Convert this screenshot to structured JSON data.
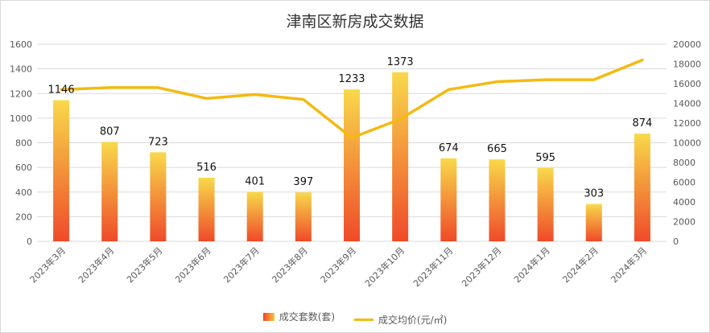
{
  "chart_data": {
    "type": "bar",
    "title": "津南区新房成交数据",
    "categories": [
      "2023年3月",
      "2023年4月",
      "2023年5月",
      "2023年6月",
      "2023年7月",
      "2023年8月",
      "2023年9月",
      "2023年10月",
      "2023年11月",
      "2023年12月",
      "2024年1月",
      "2024年2月",
      "2024年3月"
    ],
    "series": [
      {
        "name": "成交套数(套)",
        "type": "bar",
        "axis": "left",
        "values": [
          1146,
          807,
          723,
          516,
          401,
          397,
          1233,
          1373,
          674,
          665,
          595,
          303,
          874
        ]
      },
      {
        "name": "成交均价(元/㎡)",
        "type": "line",
        "axis": "right",
        "values": [
          15400,
          15600,
          15600,
          14500,
          14900,
          14400,
          10500,
          12400,
          15400,
          16200,
          16400,
          16400,
          18400
        ]
      }
    ],
    "ylim": [
      0,
      1600
    ],
    "yticks": [
      0,
      200,
      400,
      600,
      800,
      1000,
      1200,
      1400,
      1600
    ],
    "y2lim": [
      0,
      20000
    ],
    "y2ticks": [
      0,
      2000,
      4000,
      6000,
      8000,
      10000,
      12000,
      14000,
      16000,
      18000,
      20000
    ],
    "grid": true,
    "legend": "bottom",
    "colors": {
      "bar_top": "#f8d94a",
      "bar_bottom": "#ef4a2a",
      "line": "#f4ba12",
      "grid": "#d9d9d9"
    }
  }
}
